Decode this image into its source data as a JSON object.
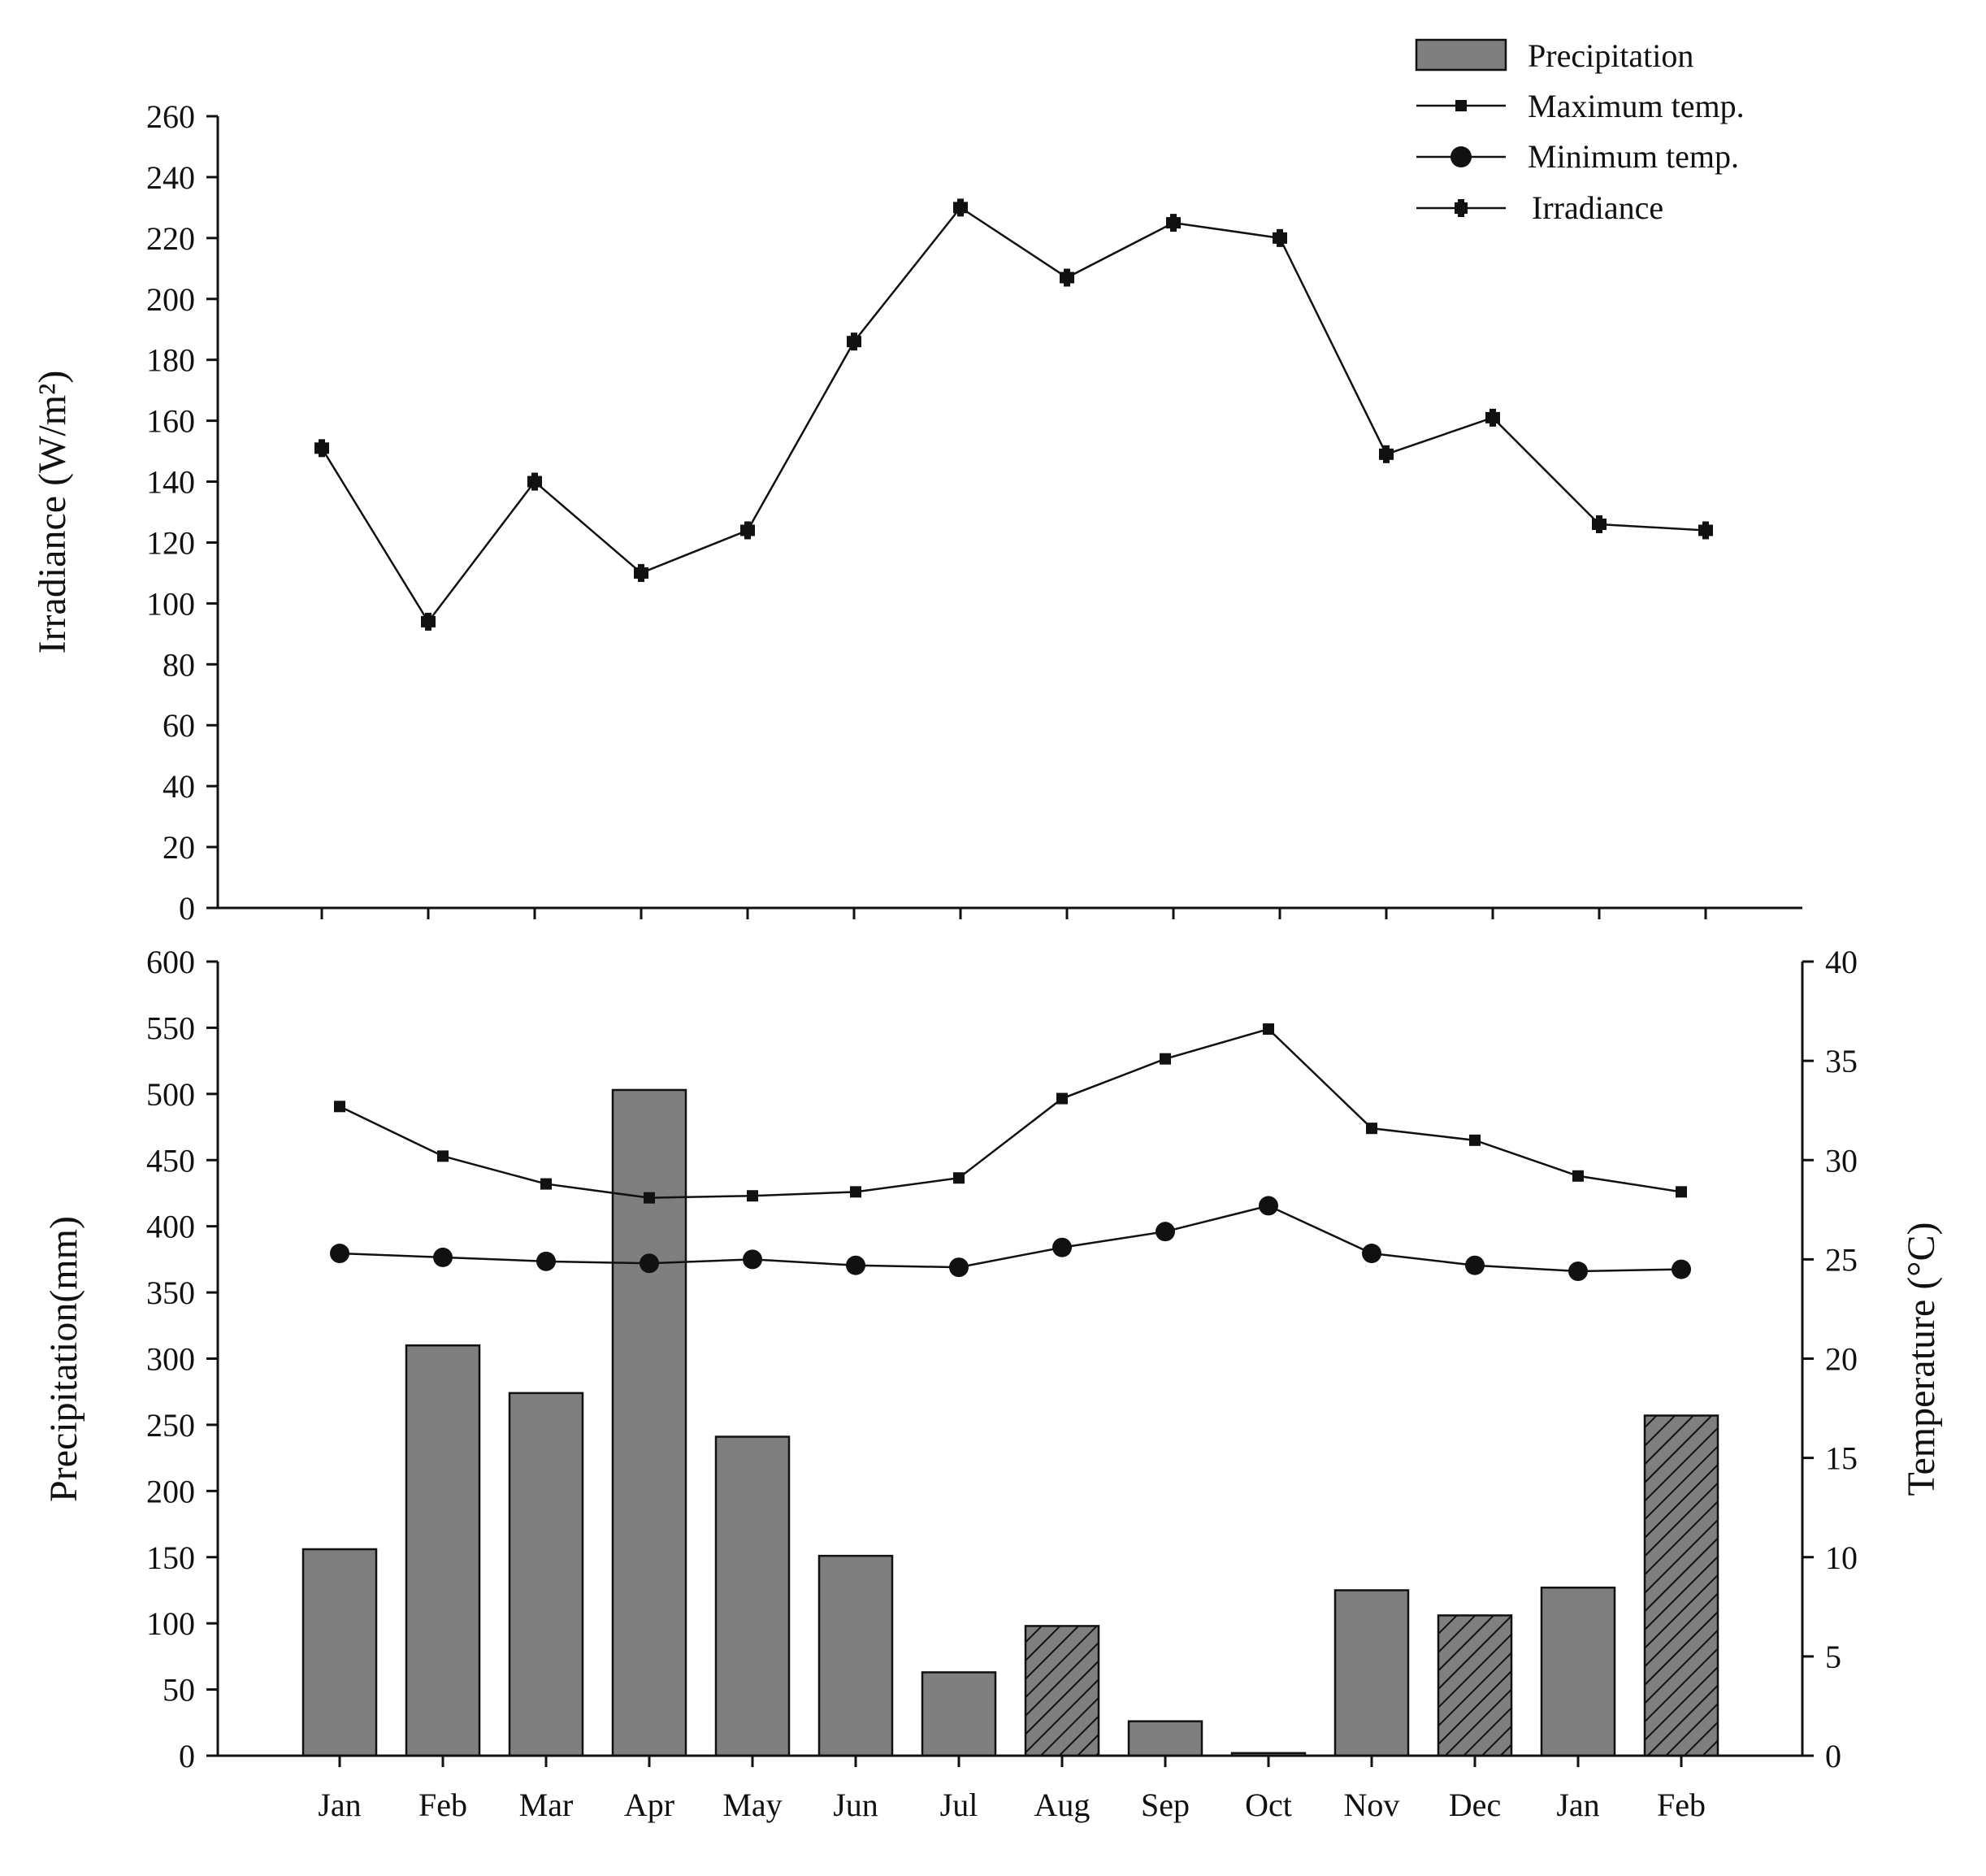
{
  "colors": {
    "bar_fill": "#7f7f7f",
    "line": "#111111",
    "background": "#ffffff"
  },
  "legend": [
    {
      "key": "precipitation",
      "label": "Precipitation",
      "marker": "bar"
    },
    {
      "key": "max_temp",
      "label": "Maximum temp.",
      "marker": "square"
    },
    {
      "key": "min_temp",
      "label": "Minimum temp.",
      "marker": "circle"
    },
    {
      "key": "irradiance",
      "label": "Irradiance",
      "marker": "plus"
    }
  ],
  "chart_data": [
    {
      "id": "irradiance-panel",
      "type": "line",
      "categories": [
        "Jan",
        "Feb",
        "Mar",
        "Apr",
        "May",
        "Jun",
        "Jul",
        "Aug",
        "Sep",
        "Oct",
        "Nov",
        "Dec",
        "Jan",
        "Feb"
      ],
      "series": [
        {
          "name": "Irradiance",
          "marker": "plus",
          "values": [
            151,
            94,
            140,
            110,
            124,
            186,
            230,
            207,
            225,
            220,
            149,
            161,
            126,
            124
          ]
        }
      ],
      "ylabel": "Irradiance (W/m²)",
      "ylim": [
        0,
        260
      ],
      "yticks": [
        "0",
        "20",
        "40",
        "60",
        "80",
        "100",
        "120",
        "140",
        "160",
        "180",
        "200",
        "220",
        "240",
        "260"
      ],
      "x_tick_labels_shown": false,
      "grid": false
    },
    {
      "id": "precip-temp-panel",
      "type": "bar",
      "categories": [
        "Jan",
        "Feb",
        "Mar",
        "Apr",
        "May",
        "Jun",
        "Jul",
        "Aug",
        "Sep",
        "Oct",
        "Nov",
        "Dec",
        "Jan",
        "Feb"
      ],
      "bars": {
        "name": "Precipitation",
        "values": [
          156,
          310,
          274,
          503,
          241,
          151,
          63,
          98,
          26,
          2,
          125,
          106,
          127,
          257
        ],
        "hatched": [
          false,
          false,
          false,
          false,
          false,
          false,
          false,
          true,
          false,
          false,
          false,
          true,
          false,
          true
        ]
      },
      "lines": [
        {
          "name": "Maximum temp.",
          "marker": "square",
          "axis": "right",
          "values": [
            32.7,
            30.2,
            28.8,
            28.1,
            28.2,
            28.4,
            29.1,
            33.1,
            35.1,
            36.6,
            31.6,
            31.0,
            29.2,
            28.4
          ]
        },
        {
          "name": "Minimum temp.",
          "marker": "circle",
          "axis": "right",
          "values": [
            25.3,
            25.1,
            24.9,
            24.8,
            25.0,
            24.7,
            24.6,
            25.6,
            26.4,
            27.7,
            25.3,
            24.7,
            24.4,
            24.5
          ]
        }
      ],
      "ylabel": "Precipitation(mm)",
      "ylim": [
        0,
        600
      ],
      "yticks": [
        "0",
        "50",
        "100",
        "150",
        "200",
        "250",
        "300",
        "350",
        "400",
        "450",
        "500",
        "550",
        "600"
      ],
      "y2label": "Temperature (°C)",
      "y2lim": [
        0,
        40
      ],
      "y2ticks": [
        "0",
        "5",
        "10",
        "15",
        "20",
        "25",
        "30",
        "35",
        "40"
      ],
      "legend_position": "top-right",
      "grid": false
    }
  ]
}
